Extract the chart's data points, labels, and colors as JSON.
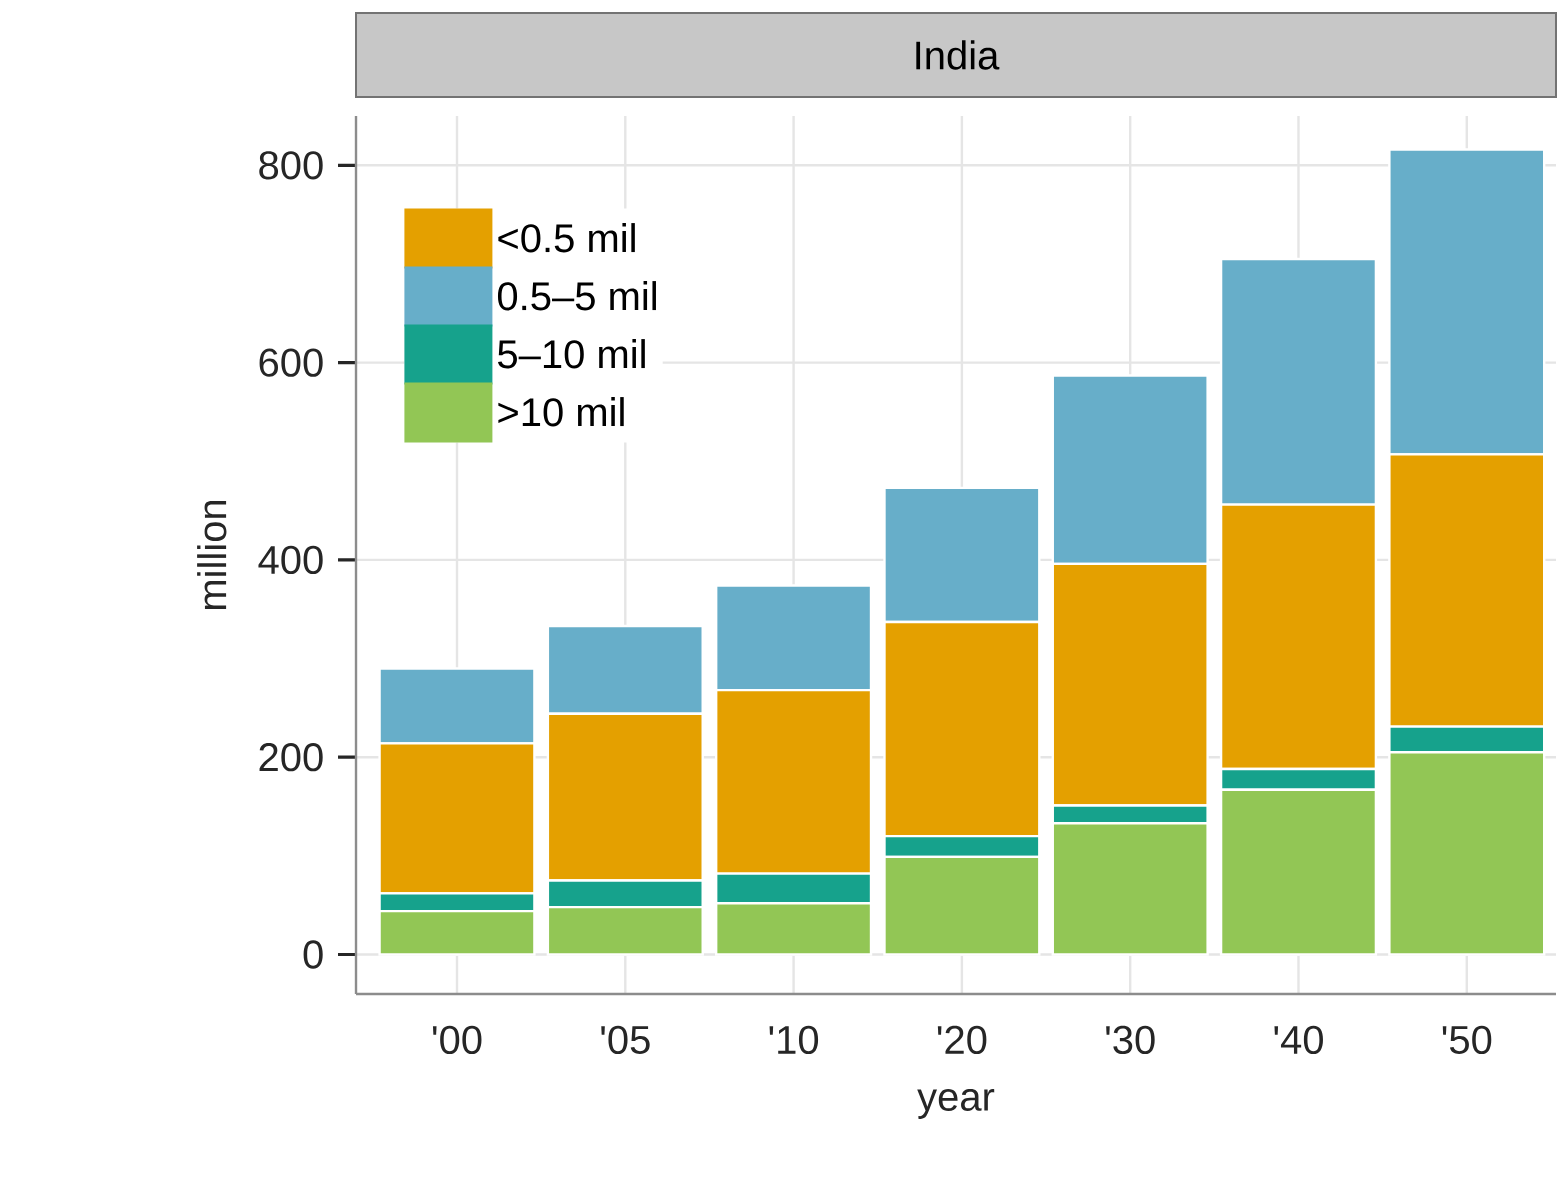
{
  "chart_data": {
    "type": "bar",
    "stacked": true,
    "title": "India",
    "xlabel": "year",
    "ylabel": "million",
    "categories": [
      "'00",
      "'05",
      "'10",
      "'20",
      "'30",
      "'40",
      "'50"
    ],
    "series": [
      {
        "name": ">10 mil",
        "color": "#92c655",
        "values": [
          44,
          48,
          52,
          99,
          133,
          167,
          205
        ]
      },
      {
        "name": "5–10 mil",
        "color": "#16a28c",
        "values": [
          18,
          27,
          30,
          21,
          18,
          21,
          26
        ]
      },
      {
        "name": "<0.5 mil",
        "color": "#e4a000",
        "values": [
          152,
          169,
          186,
          217,
          245,
          268,
          276
        ]
      },
      {
        "name": "0.5–5 mil",
        "color": "#67aec9",
        "values": [
          76,
          89,
          106,
          136,
          191,
          249,
          309
        ]
      }
    ],
    "ylim": [
      -40,
      850
    ],
    "yticks": [
      0,
      200,
      400,
      600,
      800
    ],
    "grid": true,
    "legend": "top left"
  }
}
